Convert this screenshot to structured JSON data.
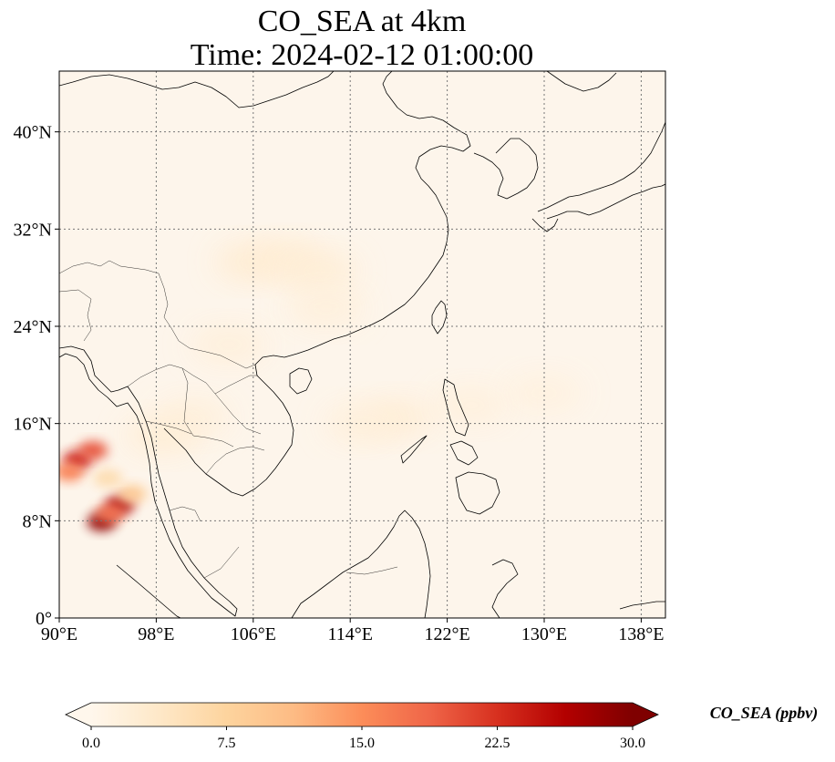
{
  "title_line1": "CO_SEA at 4km",
  "title_line2": "Time: 2024-02-12 01:00:00",
  "map": {
    "lon_range": [
      90,
      140
    ],
    "lat_range": [
      0,
      45
    ],
    "gridlines": true,
    "gridline_style": "dotted",
    "lon_ticks": [
      {
        "value": 90,
        "label": "90°E"
      },
      {
        "value": 98,
        "label": "98°E"
      },
      {
        "value": 106,
        "label": "106°E"
      },
      {
        "value": 114,
        "label": "114°E"
      },
      {
        "value": 122,
        "label": "122°E"
      },
      {
        "value": 130,
        "label": "130°E"
      },
      {
        "value": 138,
        "label": "138°E"
      }
    ],
    "lat_ticks": [
      {
        "value": 0,
        "label": "0°"
      },
      {
        "value": 8,
        "label": "8°N"
      },
      {
        "value": 16,
        "label": "16°N"
      },
      {
        "value": 24,
        "label": "24°N"
      },
      {
        "value": 32,
        "label": "32°N"
      },
      {
        "value": 40,
        "label": "40°N"
      }
    ],
    "background_color": "#fdf5eb",
    "coastline_color": "#000000",
    "plumes": [
      {
        "lon": 91.5,
        "lat": 13.0,
        "value": 24
      },
      {
        "lon": 92.8,
        "lat": 13.8,
        "value": 20
      },
      {
        "lon": 90.8,
        "lat": 12.0,
        "value": 16
      },
      {
        "lon": 93.5,
        "lat": 7.9,
        "value": 29
      },
      {
        "lon": 95.0,
        "lat": 9.3,
        "value": 27
      },
      {
        "lon": 94.2,
        "lat": 8.6,
        "value": 18
      },
      {
        "lon": 96.0,
        "lat": 10.2,
        "value": 9
      },
      {
        "lon": 94.0,
        "lat": 11.5,
        "value": 6
      },
      {
        "lon": 106.0,
        "lat": 29.3,
        "value": 3
      },
      {
        "lon": 109.0,
        "lat": 29.5,
        "value": 2.5
      },
      {
        "lon": 111.5,
        "lat": 28.5,
        "value": 2.5
      },
      {
        "lon": 112.0,
        "lat": 25.5,
        "value": 2
      },
      {
        "lon": 104.0,
        "lat": 22.5,
        "value": 2
      },
      {
        "lon": 118.0,
        "lat": 16.5,
        "value": 2.5
      },
      {
        "lon": 115.0,
        "lat": 16.0,
        "value": 2
      },
      {
        "lon": 124.0,
        "lat": 17.5,
        "value": 1.8
      },
      {
        "lon": 130.0,
        "lat": 18.5,
        "value": 1.5
      },
      {
        "lon": 101.0,
        "lat": 16.5,
        "value": 2
      },
      {
        "lon": 98.5,
        "lat": 15.0,
        "value": 2.5
      }
    ]
  },
  "colorbar": {
    "label": "CO_SEA (ppbv)",
    "min": 0.0,
    "max": 30.0,
    "colormap": "OrRd",
    "extend": "both",
    "ticks": [
      {
        "value": 0,
        "label": "0.0"
      },
      {
        "value": 7.5,
        "label": "7.5"
      },
      {
        "value": 15,
        "label": "15.0"
      },
      {
        "value": 22.5,
        "label": "22.5"
      },
      {
        "value": 30,
        "label": "30.0"
      }
    ],
    "stops": [
      "#fff7ec",
      "#fee8c8",
      "#fdd49e",
      "#fdbb84",
      "#fc8d59",
      "#ef6548",
      "#d7301f",
      "#b30000",
      "#7f0000"
    ]
  }
}
